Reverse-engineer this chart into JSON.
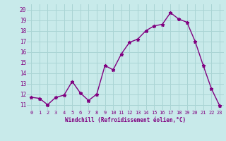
{
  "x": [
    0,
    1,
    2,
    3,
    4,
    5,
    6,
    7,
    8,
    9,
    10,
    11,
    12,
    13,
    14,
    15,
    16,
    17,
    18,
    19,
    20,
    21,
    22,
    23
  ],
  "y": [
    11.7,
    11.6,
    11.0,
    11.7,
    11.9,
    13.2,
    12.1,
    11.4,
    12.0,
    14.7,
    14.3,
    15.8,
    16.9,
    17.2,
    18.0,
    18.45,
    18.6,
    19.7,
    19.1,
    18.8,
    17.0,
    14.7,
    12.5,
    10.9
  ],
  "xlim": [
    -0.5,
    23.5
  ],
  "ylim": [
    10.5,
    20.5
  ],
  "yticks": [
    11,
    12,
    13,
    14,
    15,
    16,
    17,
    18,
    19,
    20
  ],
  "xticks": [
    0,
    1,
    2,
    3,
    4,
    5,
    6,
    7,
    8,
    9,
    10,
    11,
    12,
    13,
    14,
    15,
    16,
    17,
    18,
    19,
    20,
    21,
    22,
    23
  ],
  "line_color": "#800080",
  "marker": "*",
  "bg_color": "#c8eaea",
  "grid_color": "#aad4d4",
  "xlabel": "Windchill (Refroidissement éolien,°C)",
  "tick_color": "#800080",
  "label_color": "#800080",
  "font_family": "monospace"
}
